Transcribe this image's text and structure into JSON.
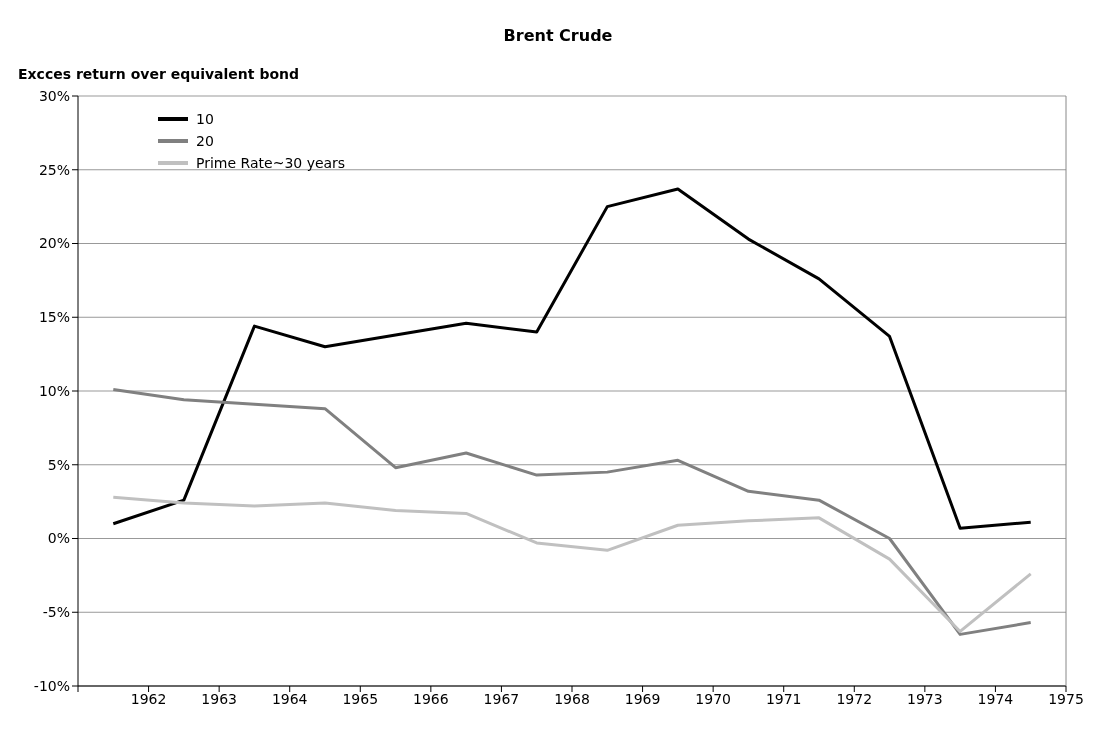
{
  "chart_data": {
    "type": "line",
    "title": "Brent Crude",
    "ylabel": "Excces return over equivalent bond",
    "x": [
      1961.5,
      1962.5,
      1963.5,
      1964.5,
      1965.5,
      1966.5,
      1967.5,
      1968.5,
      1969.5,
      1970.5,
      1971.5,
      1972.5,
      1973.5,
      1974.5
    ],
    "series": [
      {
        "name": "10",
        "color": "#000000",
        "values": [
          1.0,
          2.6,
          14.4,
          13.0,
          13.8,
          14.6,
          14.0,
          22.5,
          23.7,
          20.3,
          17.6,
          13.7,
          0.7,
          1.1
        ]
      },
      {
        "name": "20",
        "color": "#808080",
        "values": [
          10.1,
          9.4,
          9.1,
          8.8,
          4.8,
          5.8,
          4.3,
          4.5,
          5.3,
          3.2,
          2.6,
          0.0,
          -6.5,
          -5.7
        ]
      },
      {
        "name": "Prime Rate~30 years",
        "color": "#c0c0c0",
        "values": [
          2.8,
          2.4,
          2.2,
          2.4,
          1.9,
          1.7,
          -0.3,
          -0.8,
          0.9,
          1.2,
          1.4,
          -1.4,
          -6.3,
          -2.4
        ]
      }
    ],
    "xlim": [
      1961,
      1975
    ],
    "xticks": [
      {
        "value": 1961,
        "label": null
      },
      1962,
      1963,
      1964,
      1965,
      1966,
      1967,
      1968,
      1969,
      1970,
      1971,
      1972,
      1973,
      1974,
      1975
    ],
    "ylim": [
      -10,
      30
    ],
    "yticks": [
      {
        "value": -10,
        "label": "-10%"
      },
      {
        "value": -5,
        "label": "-5%"
      },
      {
        "value": 0,
        "label": "0%"
      },
      {
        "value": 5,
        "label": "5%"
      },
      {
        "value": 10,
        "label": "10%"
      },
      {
        "value": 15,
        "label": "15%"
      },
      {
        "value": 20,
        "label": "20%"
      },
      {
        "value": 25,
        "label": "25%"
      },
      {
        "value": 30,
        "label": "30%"
      }
    ],
    "grid": "y",
    "legend": "top left",
    "marker": "none",
    "line_style": "solid"
  }
}
